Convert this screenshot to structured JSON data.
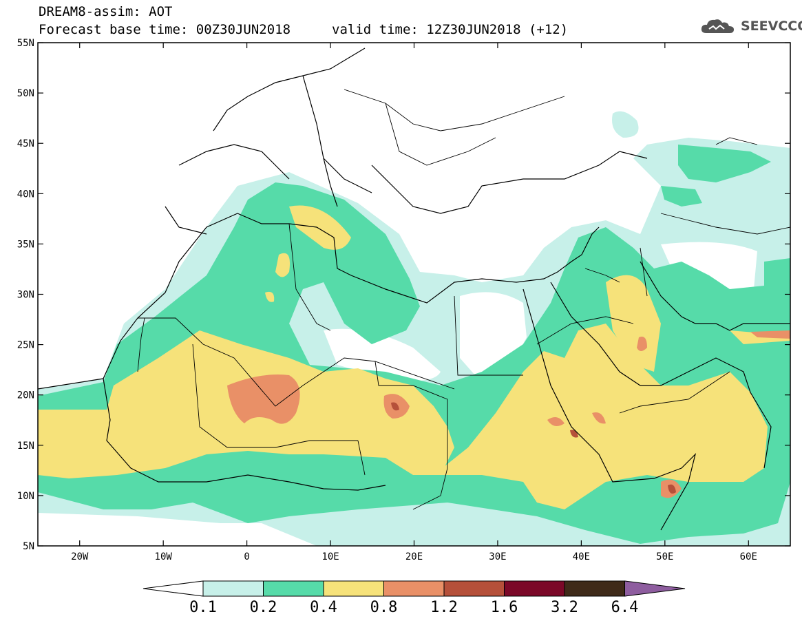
{
  "header": {
    "title": "DREAM8-assim: AOT",
    "base_time": "Forecast base time: 00Z30JUN2018",
    "valid_time": "valid time: 12Z30JUN2018 (+12)"
  },
  "logo": {
    "text": "SEEVCCC",
    "icon": "cloud-icon"
  },
  "map": {
    "lon_range": [
      -25,
      65
    ],
    "lat_range": [
      5,
      55
    ],
    "lat_ticks": [
      "55N",
      "50N",
      "45N",
      "40N",
      "35N",
      "30N",
      "25N",
      "20N",
      "15N",
      "10N",
      "5N"
    ],
    "lon_ticks": [
      "20W",
      "10W",
      "0",
      "10E",
      "20E",
      "30E",
      "40E",
      "50E",
      "60E"
    ],
    "field": "Aerosol Optical Thickness"
  },
  "colorbar": {
    "levels": [
      "0.1",
      "0.2",
      "0.4",
      "0.8",
      "1.2",
      "1.6",
      "3.2",
      "6.4"
    ],
    "colors": [
      "#ffffff",
      "#c7f0e9",
      "#56dba9",
      "#f6e27a",
      "#e99067",
      "#b5503a",
      "#7b0828",
      "#3f2a19",
      "#8e5d9f"
    ]
  }
}
